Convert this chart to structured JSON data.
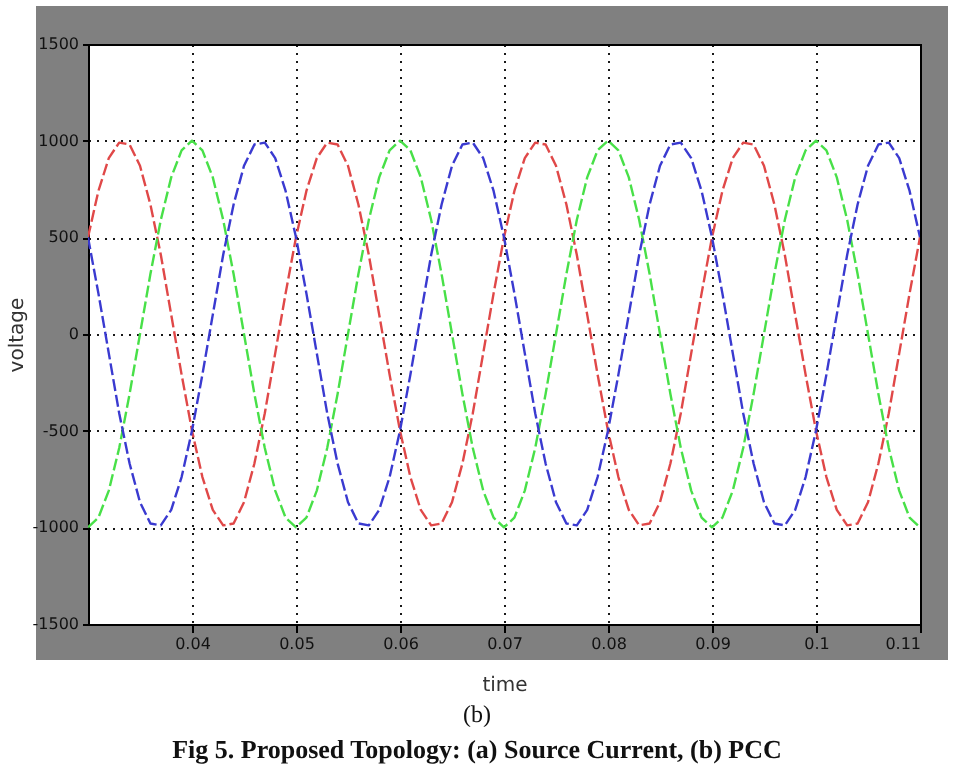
{
  "chart_data": {
    "type": "line",
    "xlabel": "time",
    "ylabel": "voltage",
    "x": [
      0.03,
      0.031,
      0.032,
      0.033,
      0.034,
      0.035,
      0.036,
      0.037,
      0.038,
      0.039,
      0.04,
      0.041,
      0.042,
      0.043,
      0.044,
      0.045,
      0.046,
      0.047,
      0.048,
      0.049,
      0.05,
      0.051,
      0.052,
      0.053,
      0.054,
      0.055,
      0.056,
      0.057,
      0.058,
      0.059,
      0.06,
      0.061,
      0.062,
      0.063,
      0.064,
      0.065,
      0.066,
      0.067,
      0.068,
      0.069,
      0.07,
      0.071,
      0.072,
      0.073,
      0.074,
      0.075,
      0.076,
      0.077,
      0.078,
      0.079,
      0.08,
      0.081,
      0.082,
      0.083,
      0.084,
      0.085,
      0.086,
      0.087,
      0.088,
      0.089,
      0.09,
      0.091,
      0.092,
      0.093,
      0.094,
      0.095,
      0.096,
      0.097,
      0.098,
      0.099,
      0.1,
      0.101,
      0.102,
      0.103,
      0.104,
      0.105,
      0.106,
      0.107,
      0.108,
      0.109,
      0.11
    ],
    "series": [
      {
        "color": "#e04848",
        "values": [
          500,
          740,
          910,
          990,
          980,
          870,
          670,
          410,
          100,
          -210,
          -500,
          -740,
          -910,
          -990,
          -980,
          -870,
          -670,
          -410,
          -100,
          210,
          500,
          740,
          910,
          990,
          980,
          870,
          670,
          410,
          100,
          -210,
          -500,
          -740,
          -910,
          -990,
          -980,
          -870,
          -670,
          -410,
          -100,
          210,
          500,
          740,
          910,
          990,
          980,
          870,
          670,
          410,
          100,
          -210,
          -500,
          -740,
          -910,
          -990,
          -980,
          -870,
          -670,
          -410,
          -100,
          210,
          500,
          740,
          910,
          990,
          980,
          870,
          670,
          410,
          100,
          -210,
          -500,
          -740,
          -910,
          -990,
          -980,
          -870,
          -670,
          -410,
          -100,
          210,
          500
        ]
      },
      {
        "color": "#48e048",
        "values": [
          -1000,
          -950,
          -810,
          -590,
          -310,
          0,
          310,
          590,
          810,
          950,
          1000,
          950,
          810,
          590,
          310,
          0,
          -310,
          -590,
          -810,
          -950,
          -1000,
          -950,
          -810,
          -590,
          -310,
          0,
          310,
          590,
          810,
          950,
          1000,
          950,
          810,
          590,
          310,
          0,
          -310,
          -590,
          -810,
          -950,
          -1000,
          -950,
          -810,
          -590,
          -310,
          0,
          310,
          590,
          810,
          950,
          1000,
          950,
          810,
          590,
          310,
          0,
          -310,
          -590,
          -810,
          -950,
          -1000,
          -950,
          -810,
          -590,
          -310,
          0,
          310,
          590,
          810,
          950,
          1000,
          950,
          810,
          590,
          310,
          0,
          -310,
          -590,
          -810,
          -950,
          -1000
        ]
      },
      {
        "color": "#3a3ad0",
        "values": [
          500,
          210,
          -100,
          -410,
          -670,
          -870,
          -980,
          -990,
          -910,
          -740,
          -500,
          -210,
          100,
          410,
          670,
          870,
          980,
          990,
          910,
          740,
          500,
          210,
          -100,
          -410,
          -670,
          -870,
          -980,
          -990,
          -910,
          -740,
          -500,
          -210,
          100,
          410,
          670,
          870,
          980,
          990,
          910,
          740,
          500,
          210,
          -100,
          -410,
          -670,
          -870,
          -980,
          -990,
          -910,
          -740,
          -500,
          -210,
          100,
          410,
          670,
          870,
          980,
          990,
          910,
          740,
          500,
          210,
          -100,
          -410,
          -670,
          -870,
          -980,
          -990,
          -910,
          -740,
          -500,
          -210,
          100,
          410,
          670,
          870,
          980,
          990,
          910,
          740,
          500
        ]
      }
    ],
    "xlim": [
      0.03,
      0.11
    ],
    "xticks": [
      0.04,
      0.05,
      0.06,
      0.07,
      0.08,
      0.09,
      0.1,
      0.11
    ],
    "ylim": [
      -1500,
      1500
    ],
    "yticks": [
      -1500,
      -1000,
      -500,
      0,
      500,
      1000,
      1500
    ],
    "grid": true,
    "line_style": "dashed",
    "annotations": [
      "(b)",
      "Fig 5. Proposed Topology: (a) Source Current, (b) PCC"
    ]
  }
}
